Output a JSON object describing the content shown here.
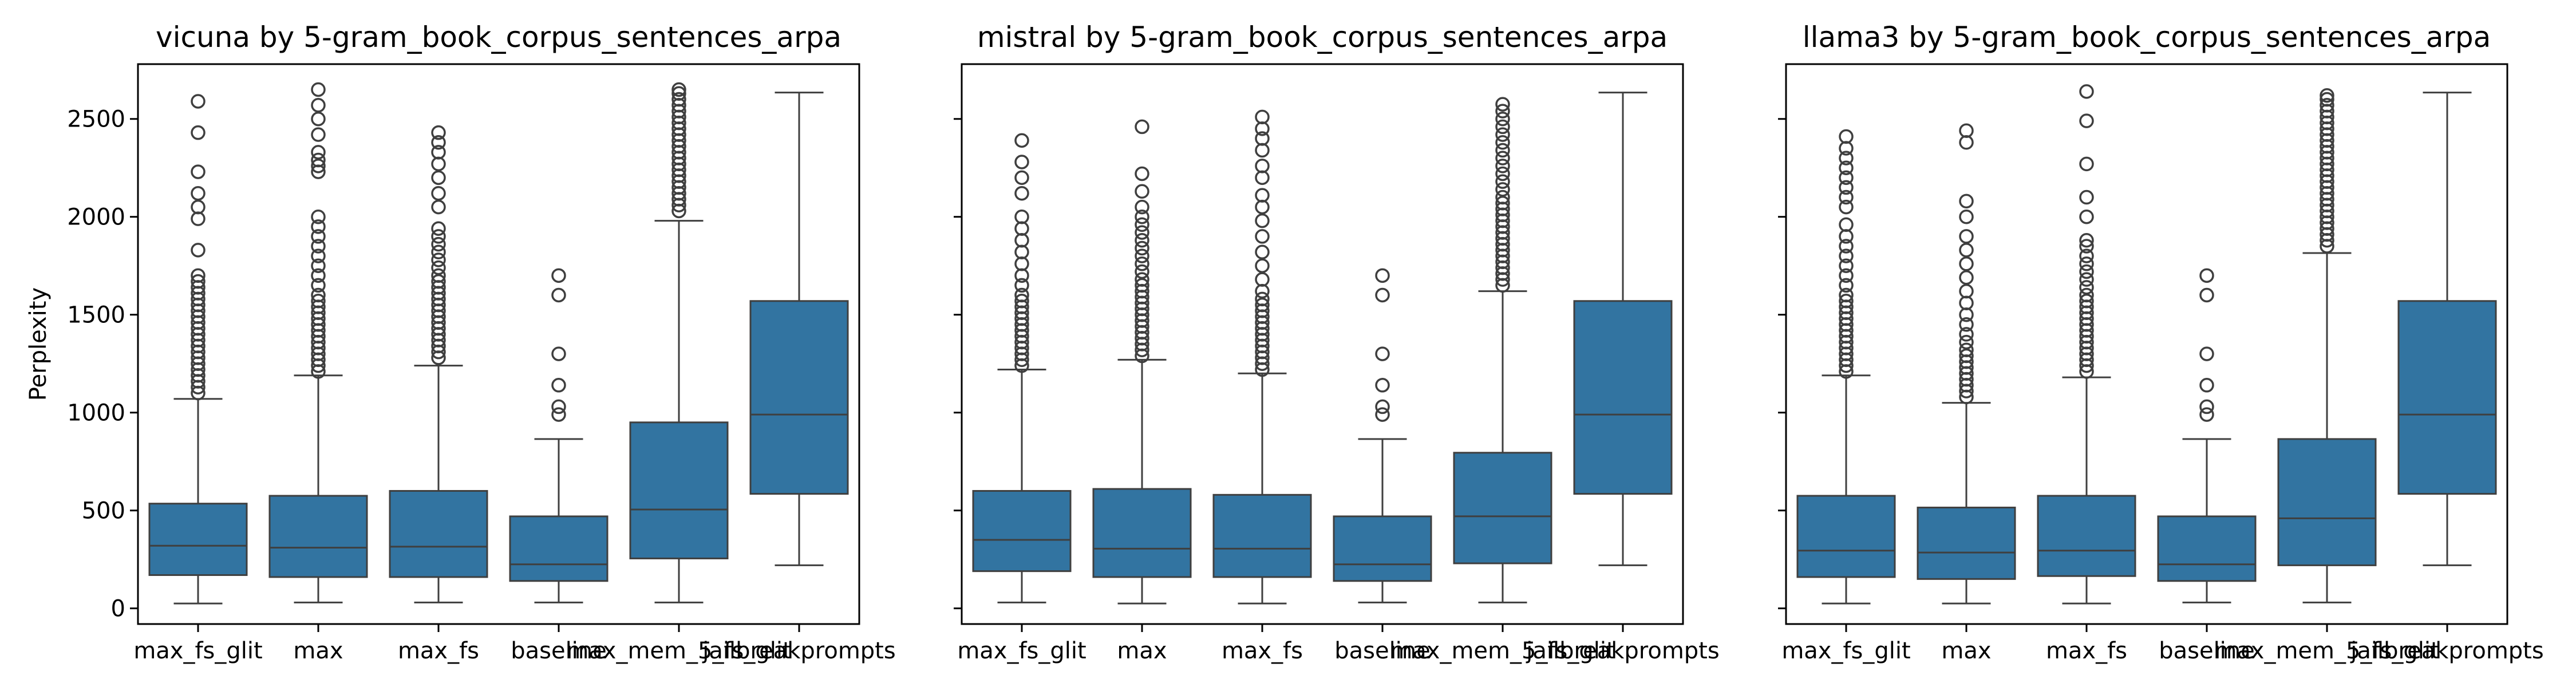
{
  "chart_data": [
    {
      "type": "box",
      "title": "vicuna by 5-gram_book_corpus_sentences_arpa",
      "ylabel": "Perplexity",
      "xlabel": "",
      "ylim": [
        -80,
        2780
      ],
      "yticks": [
        0,
        500,
        1000,
        1500,
        2000,
        2500
      ],
      "grid": false,
      "categories": [
        "max_fs_glit",
        "max",
        "max_fs",
        "baseline",
        "max_mem_5_fs_glit",
        "jailbreakprompts"
      ],
      "box_color": "#3274a1",
      "boxes": [
        {
          "q1": 170,
          "median": 320,
          "q3": 535,
          "whislo": 25,
          "whishi": 1070,
          "fliers": [
            1100,
            1130,
            1160,
            1190,
            1220,
            1250,
            1280,
            1310,
            1340,
            1370,
            1400,
            1430,
            1460,
            1490,
            1520,
            1550,
            1580,
            1610,
            1640,
            1670,
            1700,
            1830,
            1990,
            2050,
            2120,
            2230,
            2430,
            2590
          ]
        },
        {
          "q1": 160,
          "median": 310,
          "q3": 575,
          "whislo": 30,
          "whishi": 1190,
          "fliers": [
            1210,
            1240,
            1270,
            1300,
            1330,
            1360,
            1390,
            1420,
            1450,
            1480,
            1510,
            1540,
            1570,
            1600,
            1650,
            1700,
            1750,
            1800,
            1850,
            1900,
            1950,
            2000,
            2230,
            2260,
            2290,
            2330,
            2420,
            2500,
            2570,
            2650
          ]
        },
        {
          "q1": 160,
          "median": 315,
          "q3": 600,
          "whislo": 30,
          "whishi": 1240,
          "fliers": [
            1280,
            1310,
            1340,
            1370,
            1400,
            1430,
            1460,
            1490,
            1520,
            1550,
            1580,
            1610,
            1640,
            1670,
            1700,
            1740,
            1780,
            1820,
            1860,
            1900,
            1940,
            2050,
            2120,
            2200,
            2270,
            2330,
            2380,
            2430
          ]
        },
        {
          "q1": 140,
          "median": 225,
          "q3": 470,
          "whislo": 30,
          "whishi": 865,
          "fliers": [
            990,
            1030,
            1140,
            1300,
            1600,
            1700
          ]
        },
        {
          "q1": 255,
          "median": 505,
          "q3": 950,
          "whislo": 30,
          "whishi": 1980,
          "fliers": [
            2030,
            2060,
            2090,
            2120,
            2150,
            2180,
            2210,
            2240,
            2270,
            2300,
            2330,
            2360,
            2390,
            2420,
            2450,
            2480,
            2510,
            2540,
            2570,
            2600,
            2630,
            2650
          ]
        },
        {
          "q1": 585,
          "median": 990,
          "q3": 1570,
          "whislo": 220,
          "whishi": 2635,
          "fliers": []
        }
      ]
    },
    {
      "type": "box",
      "title": "mistral by 5-gram_book_corpus_sentences_arpa",
      "ylabel": "",
      "xlabel": "",
      "ylim": [
        -80,
        2780
      ],
      "yticks": [
        0,
        500,
        1000,
        1500,
        2000,
        2500
      ],
      "grid": false,
      "categories": [
        "max_fs_glit",
        "max",
        "max_fs",
        "baseline",
        "max_mem_5_fs_glit",
        "jailbreakprompts"
      ],
      "box_color": "#3274a1",
      "boxes": [
        {
          "q1": 190,
          "median": 350,
          "q3": 600,
          "whislo": 30,
          "whishi": 1220,
          "fliers": [
            1240,
            1270,
            1300,
            1330,
            1360,
            1390,
            1420,
            1450,
            1480,
            1510,
            1540,
            1570,
            1600,
            1650,
            1700,
            1760,
            1820,
            1880,
            1940,
            2000,
            2120,
            2200,
            2280,
            2390
          ]
        },
        {
          "q1": 160,
          "median": 305,
          "q3": 610,
          "whislo": 25,
          "whishi": 1270,
          "fliers": [
            1290,
            1320,
            1350,
            1380,
            1410,
            1440,
            1470,
            1500,
            1530,
            1560,
            1590,
            1620,
            1650,
            1680,
            1720,
            1760,
            1800,
            1840,
            1880,
            1920,
            1960,
            2000,
            2050,
            2130,
            2220,
            2460
          ]
        },
        {
          "q1": 160,
          "median": 305,
          "q3": 580,
          "whislo": 25,
          "whishi": 1200,
          "fliers": [
            1220,
            1250,
            1280,
            1310,
            1340,
            1370,
            1400,
            1430,
            1460,
            1490,
            1520,
            1550,
            1580,
            1620,
            1680,
            1750,
            1820,
            1900,
            1980,
            2050,
            2110,
            2200,
            2260,
            2340,
            2400,
            2450,
            2510
          ]
        },
        {
          "q1": 140,
          "median": 225,
          "q3": 470,
          "whislo": 30,
          "whishi": 865,
          "fliers": [
            990,
            1030,
            1140,
            1300,
            1600,
            1700
          ]
        },
        {
          "q1": 230,
          "median": 470,
          "q3": 795,
          "whislo": 30,
          "whishi": 1620,
          "fliers": [
            1650,
            1680,
            1710,
            1740,
            1770,
            1800,
            1830,
            1860,
            1890,
            1920,
            1950,
            1980,
            2010,
            2040,
            2070,
            2100,
            2140,
            2180,
            2220,
            2260,
            2300,
            2340,
            2380,
            2420,
            2460,
            2500,
            2540,
            2575
          ]
        },
        {
          "q1": 585,
          "median": 990,
          "q3": 1570,
          "whislo": 220,
          "whishi": 2635,
          "fliers": []
        }
      ]
    },
    {
      "type": "box",
      "title": "llama3 by 5-gram_book_corpus_sentences_arpa",
      "ylabel": "",
      "xlabel": "",
      "ylim": [
        -80,
        2780
      ],
      "yticks": [
        0,
        500,
        1000,
        1500,
        2000,
        2500
      ],
      "grid": false,
      "categories": [
        "max_fs_glit",
        "max",
        "max_fs",
        "baseline",
        "max_mem_5_fs_glit",
        "jailbreakprompts"
      ],
      "box_color": "#3274a1",
      "boxes": [
        {
          "q1": 160,
          "median": 295,
          "q3": 575,
          "whislo": 25,
          "whishi": 1190,
          "fliers": [
            1210,
            1240,
            1270,
            1300,
            1330,
            1360,
            1390,
            1420,
            1450,
            1480,
            1510,
            1540,
            1570,
            1600,
            1650,
            1700,
            1750,
            1800,
            1850,
            1900,
            1960,
            2050,
            2100,
            2150,
            2200,
            2250,
            2300,
            2350,
            2410
          ]
        },
        {
          "q1": 150,
          "median": 285,
          "q3": 515,
          "whislo": 25,
          "whishi": 1050,
          "fliers": [
            1080,
            1110,
            1140,
            1170,
            1200,
            1230,
            1260,
            1290,
            1320,
            1360,
            1400,
            1450,
            1500,
            1560,
            1620,
            1690,
            1760,
            1830,
            1900,
            2000,
            2080,
            2380,
            2440
          ]
        },
        {
          "q1": 165,
          "median": 295,
          "q3": 575,
          "whislo": 25,
          "whishi": 1180,
          "fliers": [
            1210,
            1240,
            1270,
            1300,
            1330,
            1360,
            1390,
            1420,
            1450,
            1480,
            1510,
            1540,
            1570,
            1600,
            1640,
            1680,
            1720,
            1760,
            1800,
            1850,
            1880,
            2000,
            2100,
            2270,
            2490,
            2640
          ]
        },
        {
          "q1": 140,
          "median": 225,
          "q3": 470,
          "whislo": 30,
          "whishi": 865,
          "fliers": [
            990,
            1030,
            1140,
            1300,
            1600,
            1700
          ]
        },
        {
          "q1": 220,
          "median": 460,
          "q3": 865,
          "whislo": 30,
          "whishi": 1815,
          "fliers": [
            1850,
            1880,
            1910,
            1940,
            1970,
            2000,
            2030,
            2060,
            2090,
            2120,
            2150,
            2180,
            2210,
            2240,
            2270,
            2300,
            2330,
            2360,
            2390,
            2420,
            2450,
            2480,
            2510,
            2540,
            2570,
            2600,
            2620
          ]
        },
        {
          "q1": 585,
          "median": 990,
          "q3": 1570,
          "whislo": 220,
          "whishi": 2635,
          "fliers": []
        }
      ]
    }
  ]
}
